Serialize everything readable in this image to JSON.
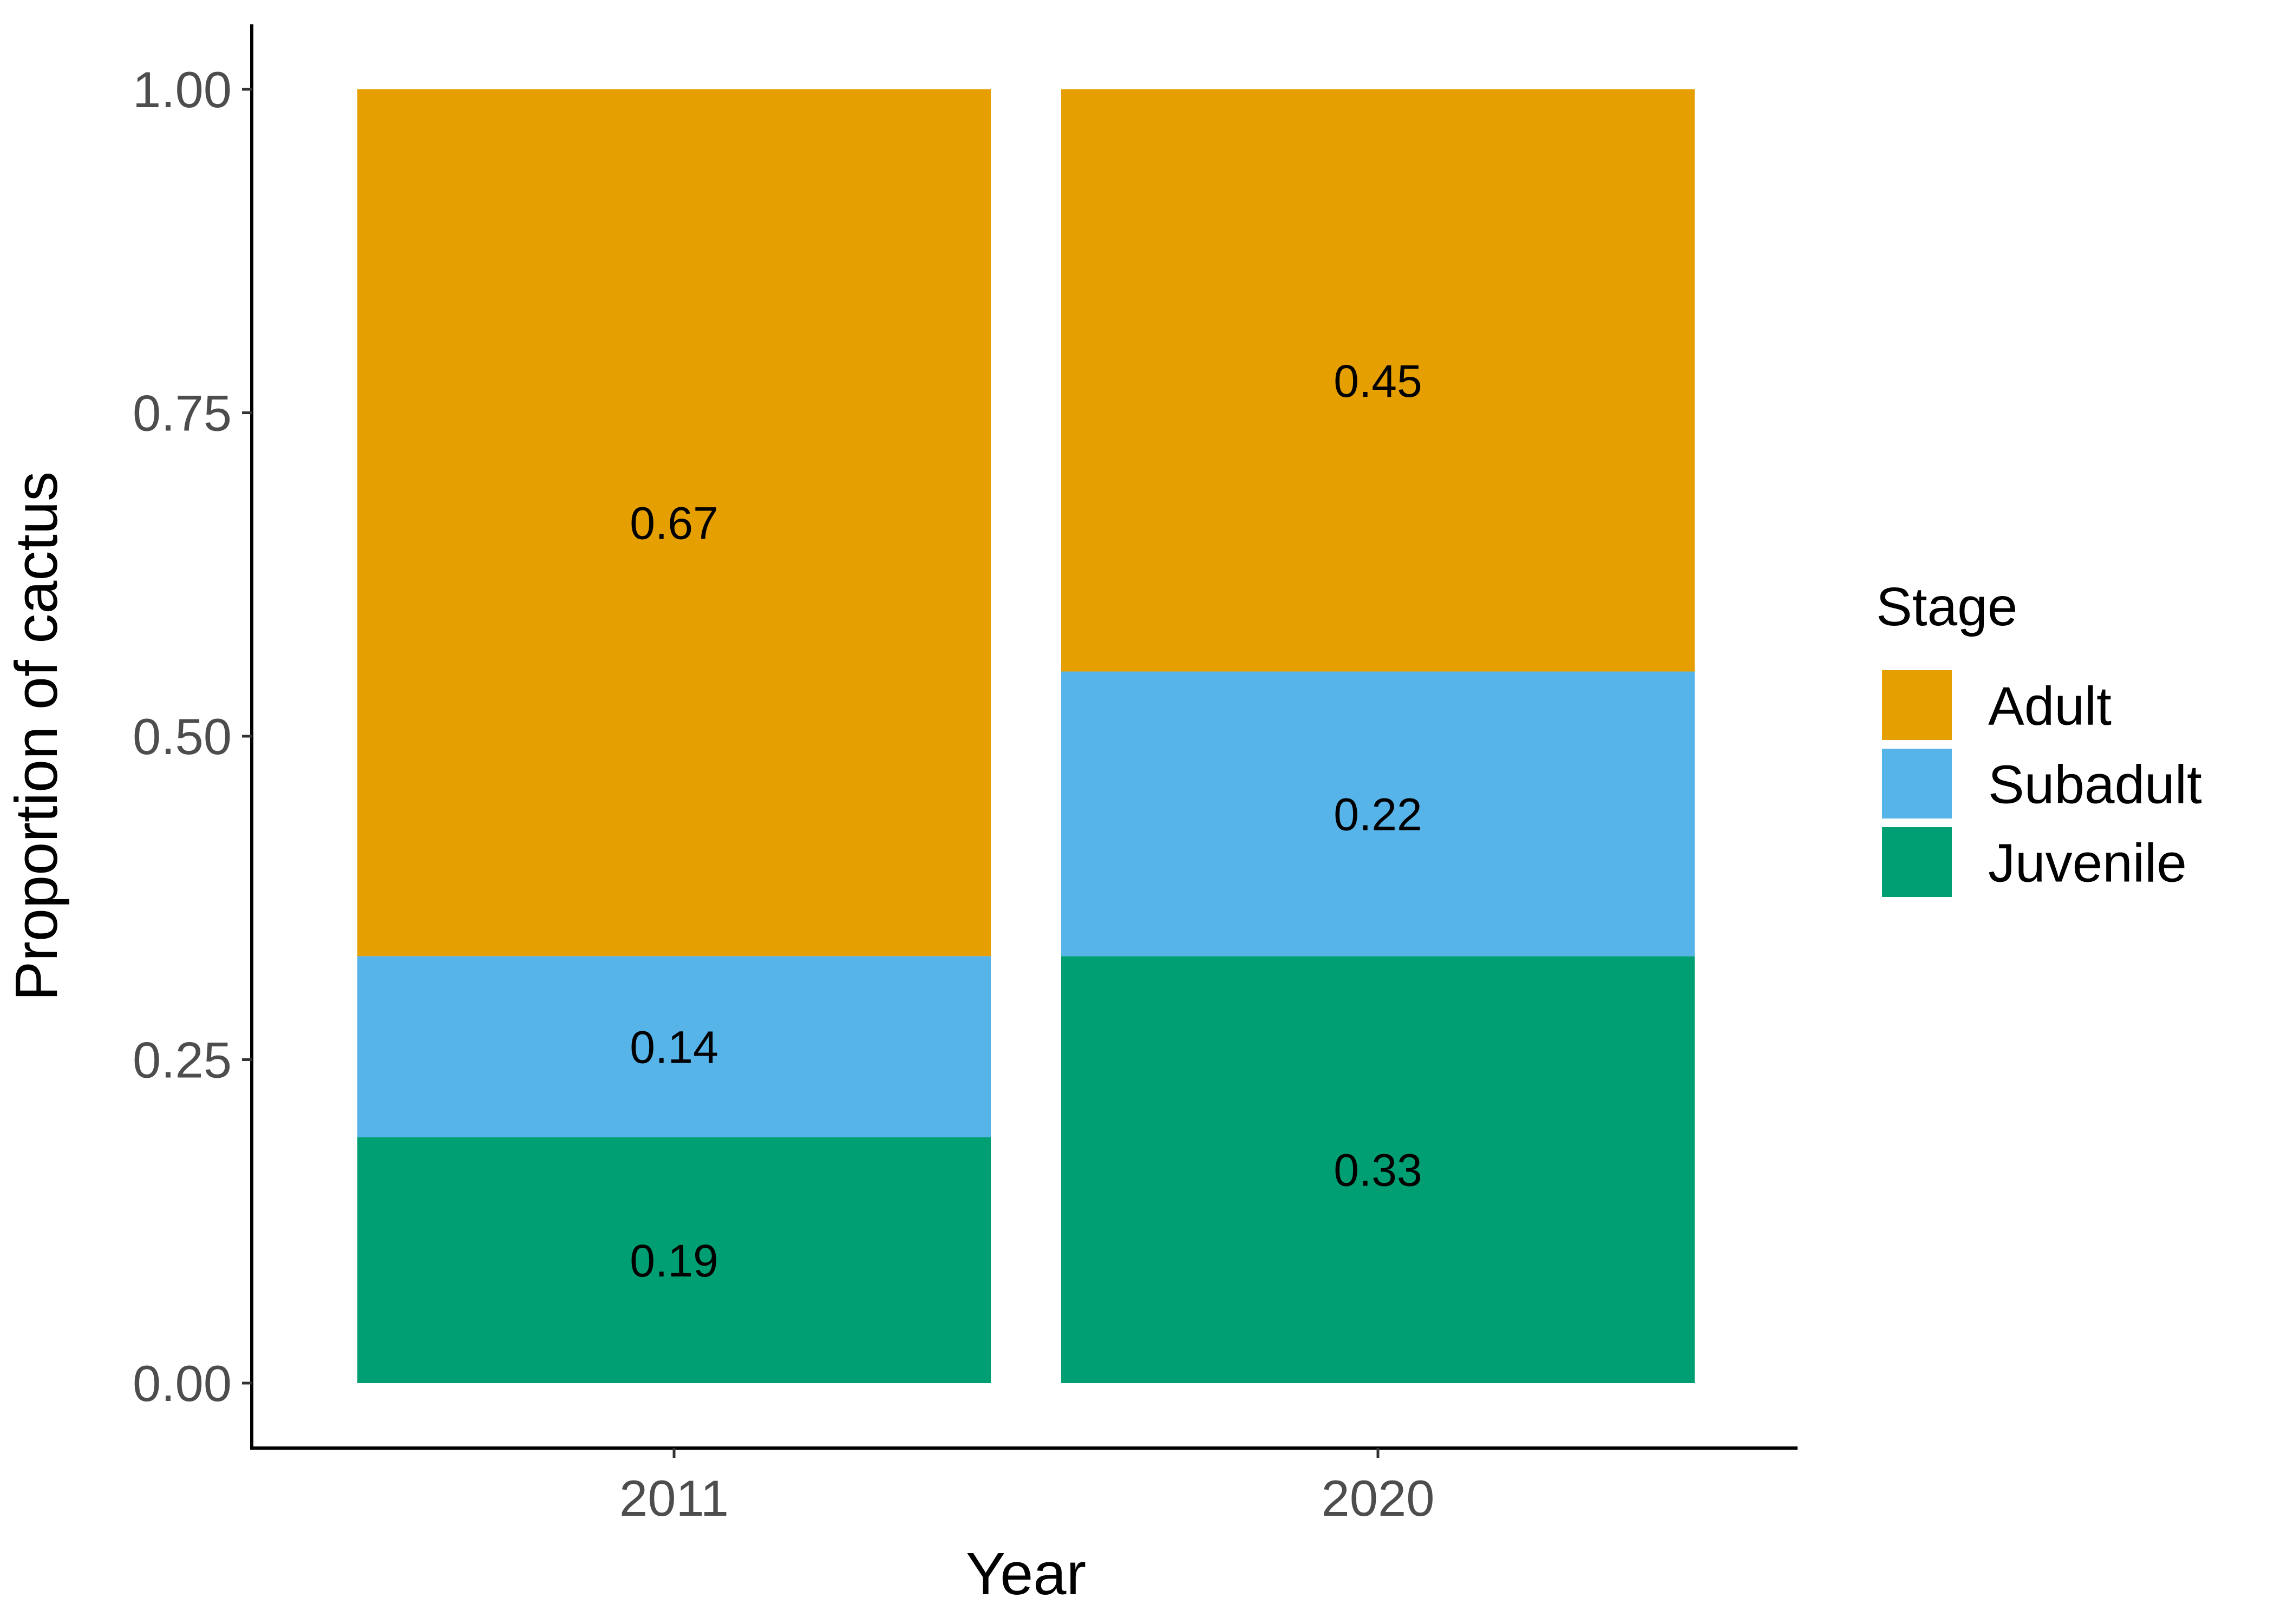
{
  "chart_data": {
    "type": "bar",
    "stacked": true,
    "categories": [
      "2011",
      "2020"
    ],
    "series": [
      {
        "name": "Juvenile",
        "values": [
          0.19,
          0.33
        ],
        "labels": [
          "0.19",
          "0.33"
        ],
        "color": "#009E73"
      },
      {
        "name": "Subadult",
        "values": [
          0.14,
          0.22
        ],
        "labels": [
          "0.14",
          "0.22"
        ],
        "color": "#56B4E9"
      },
      {
        "name": "Adult",
        "values": [
          0.67,
          0.45
        ],
        "labels": [
          "0.67",
          "0.45"
        ],
        "color": "#E69F00"
      }
    ],
    "xlabel": "Year",
    "ylabel": "Proportion of cactus",
    "ylim": [
      0,
      1
    ],
    "yticks": [
      0,
      0.25,
      0.5,
      0.75,
      1
    ],
    "ytick_labels": [
      "0.00",
      "0.25",
      "0.50",
      "0.75",
      "1.00"
    ],
    "legend": {
      "title": "Stage",
      "placement": "right",
      "entries": [
        "Adult",
        "Subadult",
        "Juvenile"
      ]
    },
    "grid": false
  }
}
